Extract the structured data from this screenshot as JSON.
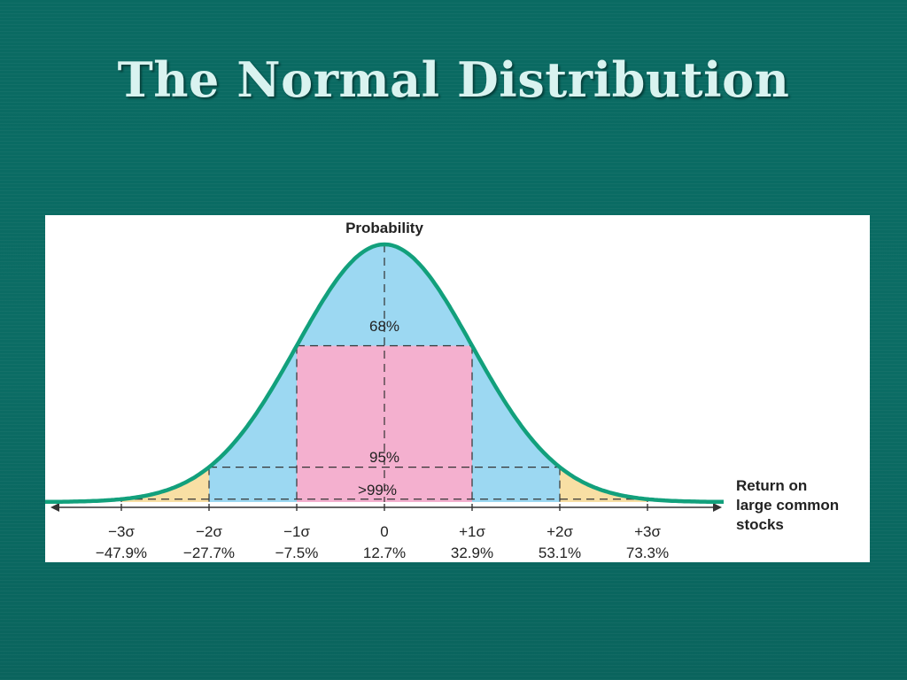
{
  "slide": {
    "title": "The Normal Distribution"
  },
  "chart_data": {
    "type": "area",
    "ylabel": "Probability",
    "xlabel_lines": [
      "Return on",
      "large common",
      "stocks"
    ],
    "mean_return_pct": 12.7,
    "sd_return_pct": 20.2,
    "x_ticks": [
      {
        "sigma": -3,
        "sigma_label": "−3σ",
        "return_label": "−47.9%",
        "return_pct": -47.9
      },
      {
        "sigma": -2,
        "sigma_label": "−2σ",
        "return_label": "−27.7%",
        "return_pct": -27.7
      },
      {
        "sigma": -1,
        "sigma_label": "−1σ",
        "return_label": "−7.5%",
        "return_pct": -7.5
      },
      {
        "sigma": 0,
        "sigma_label": "0",
        "return_label": "12.7%",
        "return_pct": 12.7
      },
      {
        "sigma": 1,
        "sigma_label": "+1σ",
        "return_label": "32.9%",
        "return_pct": 32.9
      },
      {
        "sigma": 2,
        "sigma_label": "+2σ",
        "return_label": "53.1%",
        "return_pct": 53.1
      },
      {
        "sigma": 3,
        "sigma_label": "+3σ",
        "return_label": "73.3%",
        "return_pct": 73.3
      }
    ],
    "regions": [
      {
        "label": "68%",
        "from_sigma": -1,
        "to_sigma": 1,
        "color": "#f4b0cf"
      },
      {
        "label": "95%",
        "from_sigma": -2,
        "to_sigma": 2,
        "color": "#9cd8f2"
      },
      {
        "label": ">99%",
        "from_sigma": -3,
        "to_sigma": 3,
        "color": "#f8dfa4"
      }
    ],
    "curve_color": "#12a07c",
    "x_range_sigma": [
      -3.8,
      3.8
    ]
  }
}
